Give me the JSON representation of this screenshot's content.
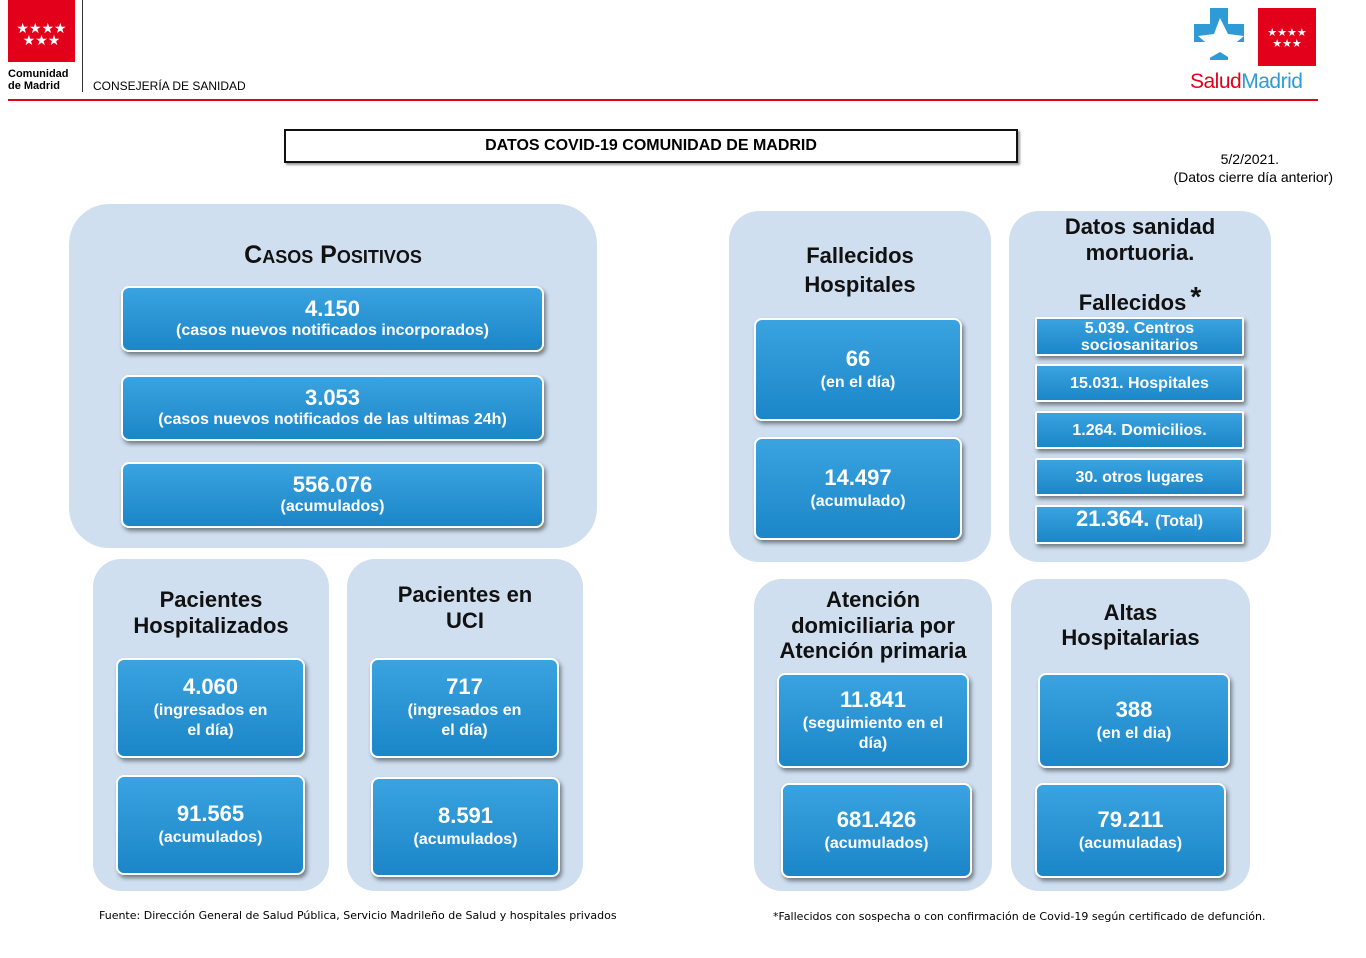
{
  "header": {
    "org": [
      "Comunidad",
      "de Madrid"
    ],
    "department": "CONSEJERÍA DE SANIDAD",
    "brand": [
      "Salud",
      "Madrid"
    ]
  },
  "title": "DATOS COVID-19 COMUNIDAD DE MADRID",
  "date": "5/2/2021.",
  "date_note": "(Datos cierre día anterior)",
  "panels": [
    {
      "title": [
        "Casos Positivos"
      ],
      "boxes": [
        {
          "value": "4.150",
          "label": [
            "(casos nuevos notificados incorporados)"
          ]
        },
        {
          "value": "3.053",
          "label": [
            "(casos nuevos notificados de las ultimas 24h)"
          ]
        },
        {
          "value": "556.076",
          "label": [
            "(acumulados)"
          ]
        }
      ]
    },
    {
      "title": [
        "Pacientes",
        "Hospitalizados"
      ],
      "boxes": [
        {
          "value": "4.060",
          "label": [
            "(ingresados en",
            "el día)"
          ]
        },
        {
          "value": "91.565",
          "label": [
            "(acumulados)"
          ]
        }
      ]
    },
    {
      "title": [
        "Pacientes en",
        "UCI"
      ],
      "boxes": [
        {
          "value": "717",
          "label": [
            "(ingresados en",
            "el día)"
          ]
        },
        {
          "value": "8.591",
          "label": [
            "(acumulados)"
          ]
        }
      ]
    },
    {
      "title": [
        "Fallecidos",
        "Hospitales"
      ],
      "boxes": [
        {
          "value": "66",
          "label": [
            "(en el día)"
          ]
        },
        {
          "value": "14.497",
          "label": [
            "(acumulado)"
          ]
        }
      ]
    },
    {
      "title": [
        "Datos sanidad",
        "mortuoria."
      ],
      "subtitle": "Fallecidos",
      "mark": "*",
      "boxes": [
        {
          "label": [
            "5.039. Centros",
            "sociosanitarios"
          ]
        },
        {
          "label": [
            "15.031. Hospitales"
          ]
        },
        {
          "label": [
            "1.264. Domicilios."
          ]
        },
        {
          "label": [
            "30. otros lugares"
          ]
        },
        {
          "value": "21.364.",
          "label": [
            "(Total)"
          ]
        }
      ]
    },
    {
      "title": [
        "Atención",
        "domiciliaria por",
        "Atención primaria"
      ],
      "boxes": [
        {
          "value": "11.841",
          "label": [
            "(seguimiento en el",
            "día)"
          ]
        },
        {
          "value": "681.426",
          "label": [
            "(acumulados)"
          ]
        }
      ]
    },
    {
      "title": [
        "Altas",
        "Hospitalarias"
      ],
      "boxes": [
        {
          "value": "388",
          "label": [
            "(en el dia)"
          ]
        },
        {
          "value": "79.211",
          "label": [
            "(acumuladas)"
          ]
        }
      ]
    }
  ],
  "footer": {
    "source": "Fuente: Dirección General de Salud Pública, Servicio Madrileño de Salud y hospitales privados",
    "note": "*Fallecidos con sospecha o con confirmación de Covid-19 según certificado de defunción."
  }
}
